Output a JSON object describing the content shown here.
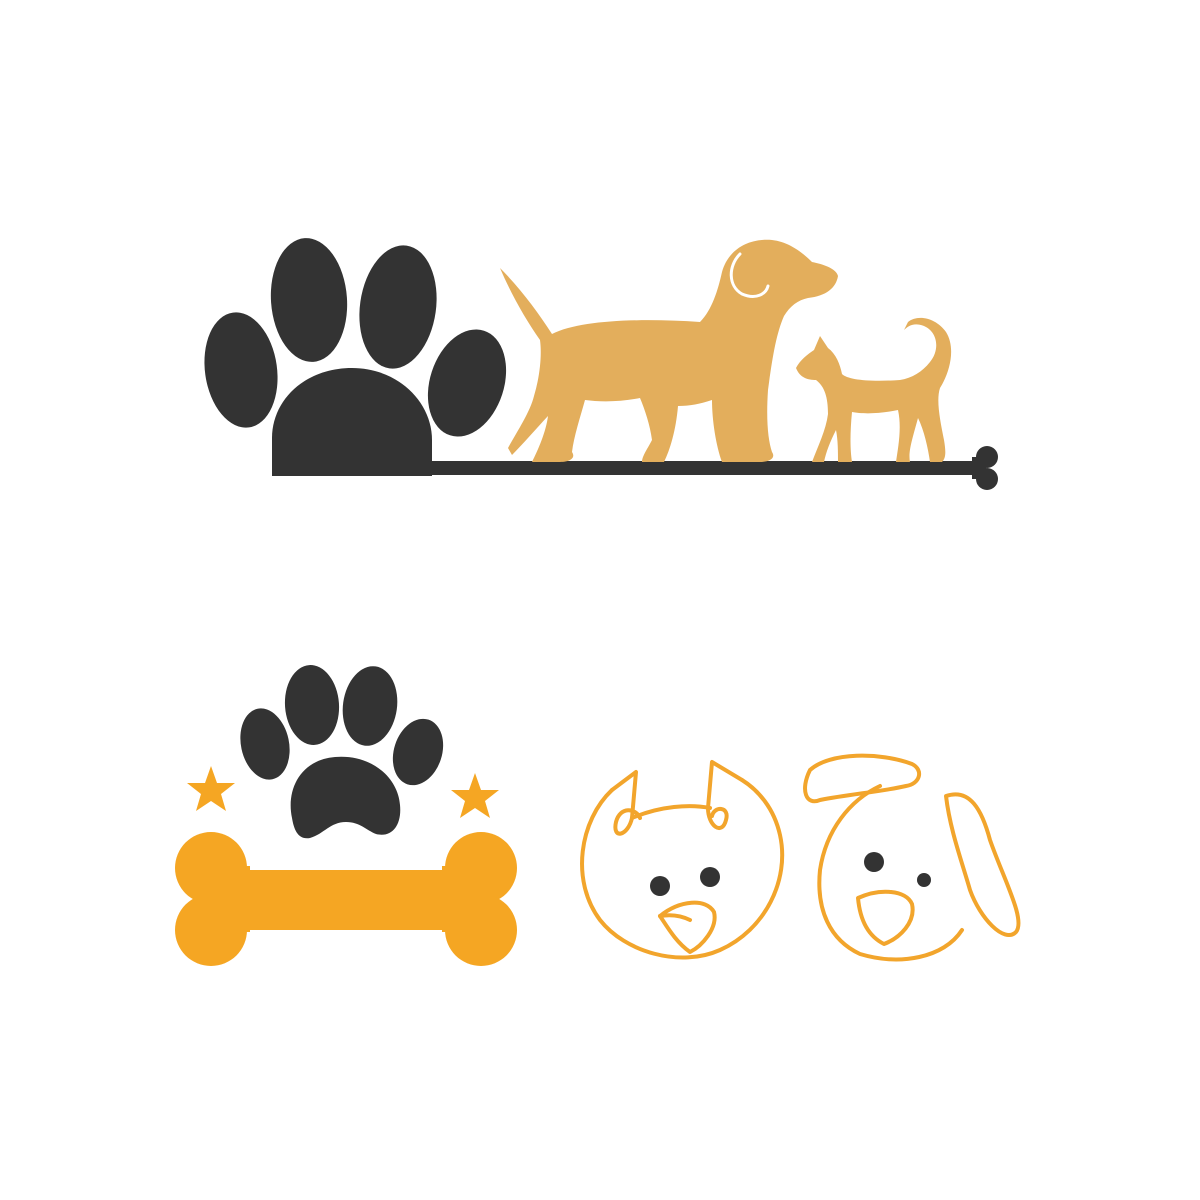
{
  "canvas": {
    "background": "#ffffff"
  },
  "colors": {
    "dark": "#333333",
    "tan": "#e3ae5c",
    "orange": "#f5a623",
    "line_orange": "#f2a52c",
    "watermark": "#d9d9d9"
  },
  "logos": [
    {
      "name": "paw-dog-cat-bone-line-logo",
      "icons": [
        "paw-icon",
        "dog-silhouette-icon",
        "cat-silhouette-icon",
        "bone-end-icon"
      ]
    },
    {
      "name": "paw-bone-stars-logo",
      "icons": [
        "paw-icon",
        "star-icon",
        "star-icon",
        "bone-icon"
      ]
    },
    {
      "name": "line-art-pet-faces-logo",
      "icons": [
        "cat-face-line-icon",
        "dog-face-line-icon"
      ]
    }
  ]
}
